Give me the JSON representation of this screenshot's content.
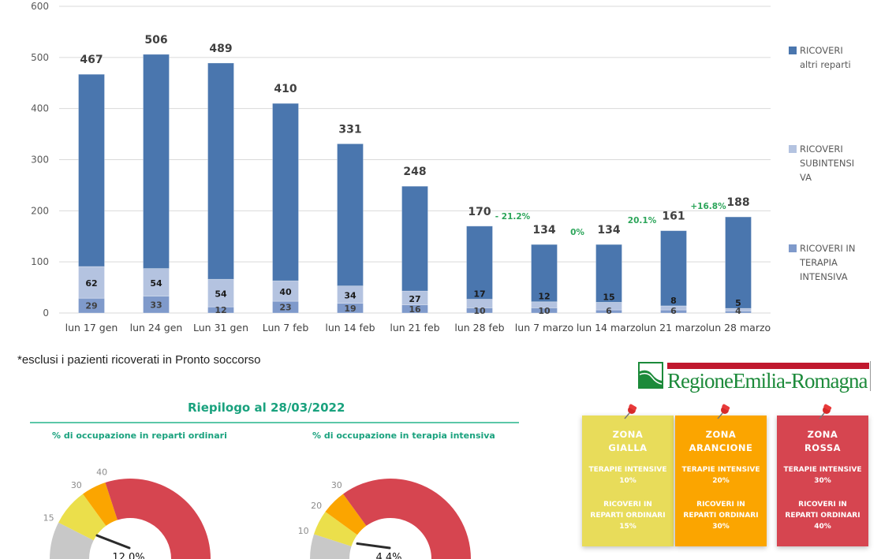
{
  "chart_data": {
    "type": "bar",
    "stacked": true,
    "title": "",
    "xlabel": "",
    "ylabel": "",
    "ylim": [
      0,
      600
    ],
    "yticks": [
      0,
      100,
      200,
      300,
      400,
      500,
      600
    ],
    "grid": true,
    "legend_position": "right",
    "categories": [
      "lun 17 gen",
      "lun 24 gen",
      "Lun 31 gen",
      "Lun 7 feb",
      "lun 14 feb",
      "lun 21 feb",
      "lun 28 feb",
      "lun 7 marzo",
      "lun 14 marzo",
      "lun 21 marzo",
      "lun 28 marzo"
    ],
    "totals": [
      467,
      506,
      489,
      410,
      331,
      248,
      170,
      134,
      134,
      161,
      188
    ],
    "series": [
      {
        "name": "RICOVERI IN TERAPIA INTENSIVA",
        "color": "#7f9acb",
        "values": [
          29,
          33,
          12,
          23,
          19,
          16,
          10,
          10,
          6,
          6,
          4
        ]
      },
      {
        "name": "RICOVERI SUBINTENSIVA",
        "color": "#b4c3e0",
        "values": [
          62,
          54,
          54,
          40,
          34,
          27,
          17,
          12,
          15,
          8,
          5
        ]
      },
      {
        "name": "RICOVERI altri reparti",
        "color": "#4a76ae",
        "values": [
          376,
          419,
          423,
          347,
          278,
          205,
          143,
          112,
          113,
          147,
          179
        ]
      }
    ],
    "annotations": [
      {
        "between": [
          "lun 28 feb",
          "lun 7 marzo"
        ],
        "text": "- 21.2%"
      },
      {
        "between": [
          "lun 7 marzo",
          "lun 14 marzo"
        ],
        "text": "0%"
      },
      {
        "between": [
          "lun 14 marzo",
          "lun 21 marzo"
        ],
        "text": "20.1%"
      },
      {
        "between": [
          "lun 21 marzo",
          "lun 28 marzo"
        ],
        "text": "+16.8%"
      }
    ],
    "annotation_color": "#2ca55a"
  },
  "legend": [
    {
      "lines": [
        "RICOVERI",
        "altri reparti"
      ],
      "color": "#4a76ae"
    },
    {
      "lines": [
        "RICOVERI",
        "SUBINTENSI",
        "VA"
      ],
      "color": "#b4c3e0"
    },
    {
      "lines": [
        "RICOVERI IN",
        "TERAPIA",
        "INTENSIVA"
      ],
      "color": "#7f9acb"
    }
  ],
  "footnote": "*esclusi i pazienti ricoverati in Pronto soccorso",
  "summary": {
    "title": "Riepilogo al  28/03/2022",
    "gauges": [
      {
        "title": "% di occupazione in reparti ordinari",
        "value": 12.0,
        "value_label": "12.0%",
        "thresholds": [
          15,
          30,
          40
        ],
        "max": 100
      },
      {
        "title": "% di occupazione in terapia intensiva",
        "value": 4.4,
        "value_label": "4.4%",
        "thresholds": [
          10,
          20,
          30
        ],
        "max": 100
      }
    ],
    "gauge_colors": {
      "base": "#c8c8c8",
      "yellow": "#ebdf4b",
      "orange": "#fba500",
      "red": "#d64550"
    }
  },
  "logo": {
    "text": "RegioneEmilia-Romagna"
  },
  "zones": [
    {
      "title1": "ZONA",
      "title2": "GIALLA",
      "ti_label": "TERAPIE INTENSIVE",
      "ti_value": "10%",
      "ro_label1": "RICOVERI IN",
      "ro_label2": "REPARTI ORDINARI",
      "ro_value": "15%",
      "color": "#e8dc5a"
    },
    {
      "title1": "ZONA",
      "title2": "ARANCIONE",
      "ti_label": "TERAPIE INTENSIVE",
      "ti_value": "20%",
      "ro_label1": "RICOVERI IN",
      "ro_label2": "REPARTI ORDINARI",
      "ro_value": "30%",
      "color": "#fba500"
    },
    {
      "title1": "ZONA",
      "title2": "ROSSA",
      "ti_label": "TERAPIE INTENSIVE",
      "ti_value": "30%",
      "ro_label1": "RICOVERI IN",
      "ro_label2": "REPARTI ORDINARI",
      "ro_value": "40%",
      "color": "#d64550"
    }
  ]
}
